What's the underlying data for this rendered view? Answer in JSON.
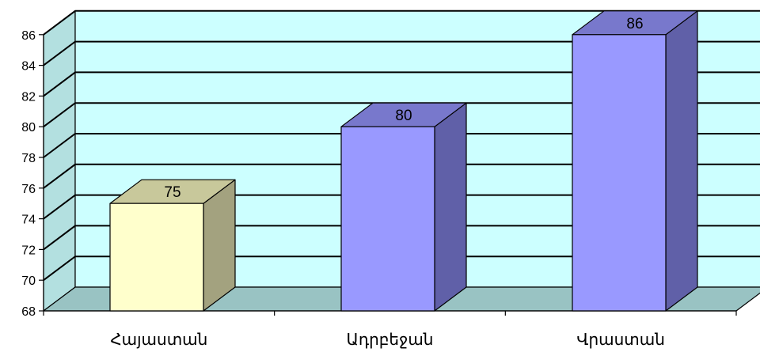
{
  "chart_data": {
    "type": "bar",
    "categories": [
      "Հայաստան",
      "Ադրբեջան",
      "Վրաստան"
    ],
    "values": [
      75,
      80,
      86
    ],
    "data_labels": [
      "75",
      "80",
      "86"
    ],
    "yticks": [
      "68",
      "70",
      "72",
      "74",
      "76",
      "78",
      "80",
      "82",
      "84",
      "86"
    ],
    "ylim": [
      68,
      86
    ],
    "grid": true,
    "title": "",
    "xlabel": "",
    "ylabel": "",
    "style_3d": true,
    "colors": {
      "wall": "#ccffff",
      "wall_side": "#b3e0e0",
      "floor": "#99c3c3",
      "bars": [
        {
          "front": "#ffffcc",
          "top": "#c8c89b",
          "side": "#a3a27f"
        },
        {
          "front": "#9999ff",
          "top": "#7878cc",
          "side": "#6060a8"
        },
        {
          "front": "#9999ff",
          "top": "#7878cc",
          "side": "#6060a8"
        }
      ]
    }
  }
}
